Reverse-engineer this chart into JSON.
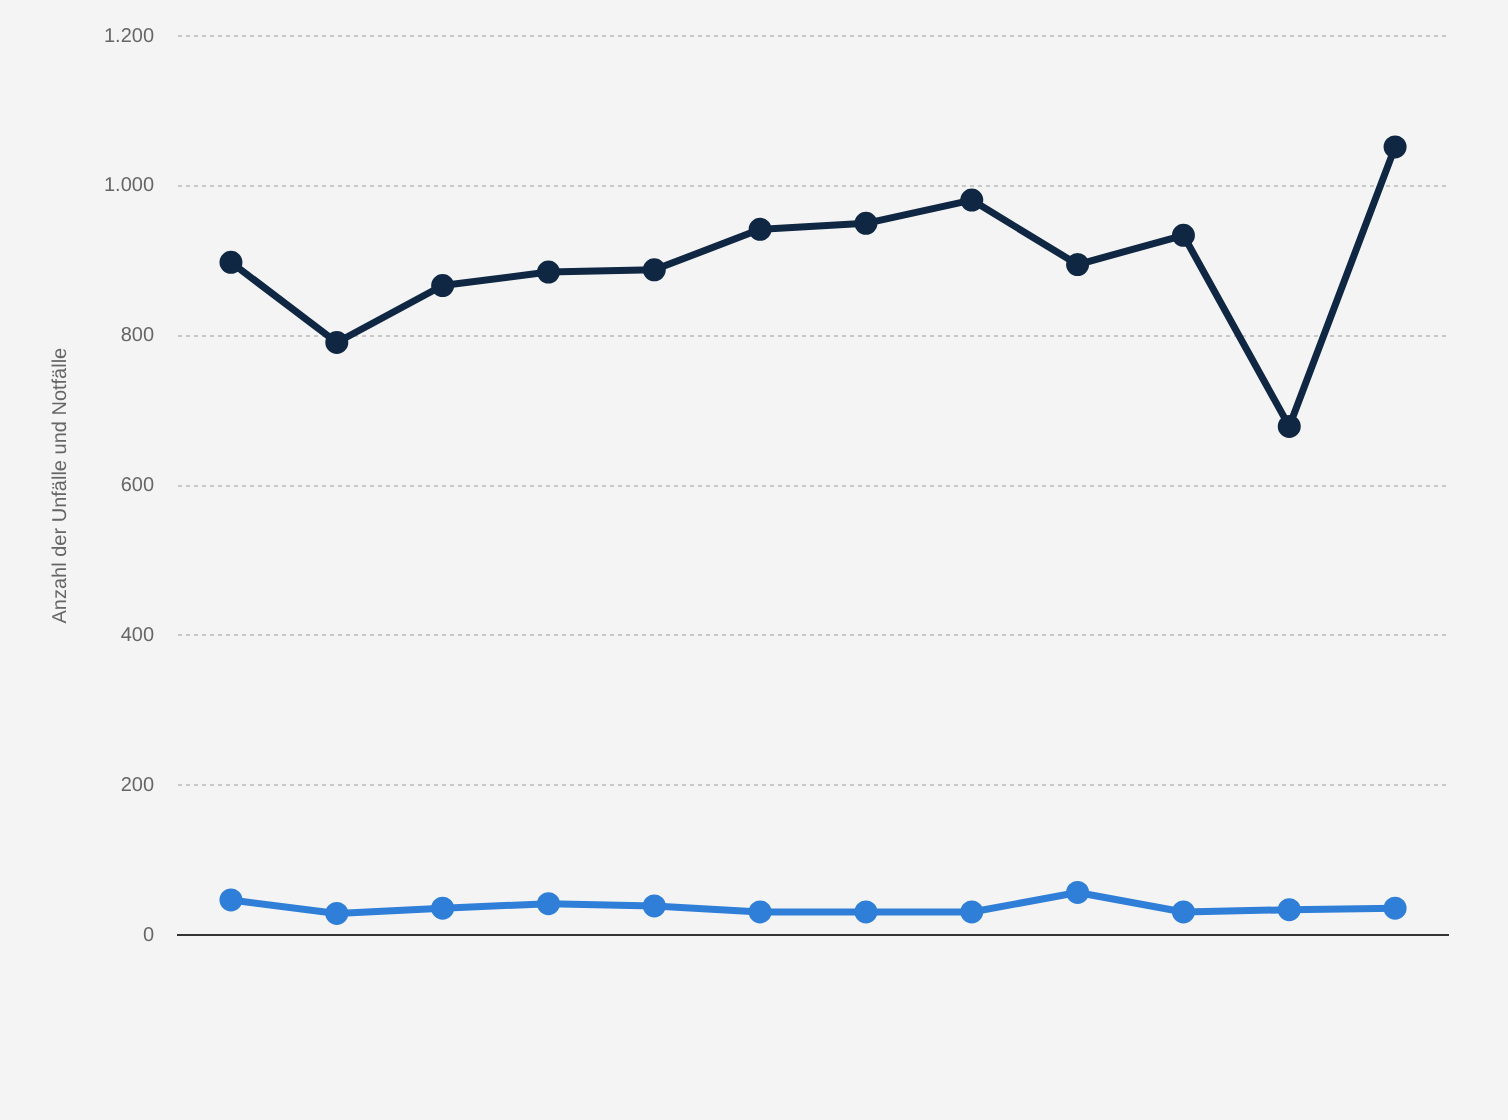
{
  "chart_data": {
    "type": "line",
    "ylabel": "Anzahl der Unfälle und Notfälle",
    "categories": [
      null,
      null,
      null,
      null,
      null,
      null,
      null,
      null,
      null,
      null,
      null,
      null
    ],
    "series": [
      {
        "color": "#0f2742",
        "values": [
          898,
          791,
          867,
          885,
          888,
          942,
          950,
          981,
          895,
          934,
          679,
          1052
        ]
      },
      {
        "color": "#2f7ed8",
        "values": [
          47,
          29,
          36,
          42,
          39,
          31,
          31,
          31,
          57,
          31,
          34,
          36
        ]
      }
    ],
    "ylim": [
      0,
      1200
    ],
    "yticks": [
      0,
      200,
      400,
      600,
      800,
      {
        "value": 1000,
        "label": "1.000"
      },
      {
        "value": 1200,
        "label": "1.200"
      }
    ],
    "grid": "y",
    "legend": false,
    "marker": "circle",
    "line_style": "solid"
  }
}
